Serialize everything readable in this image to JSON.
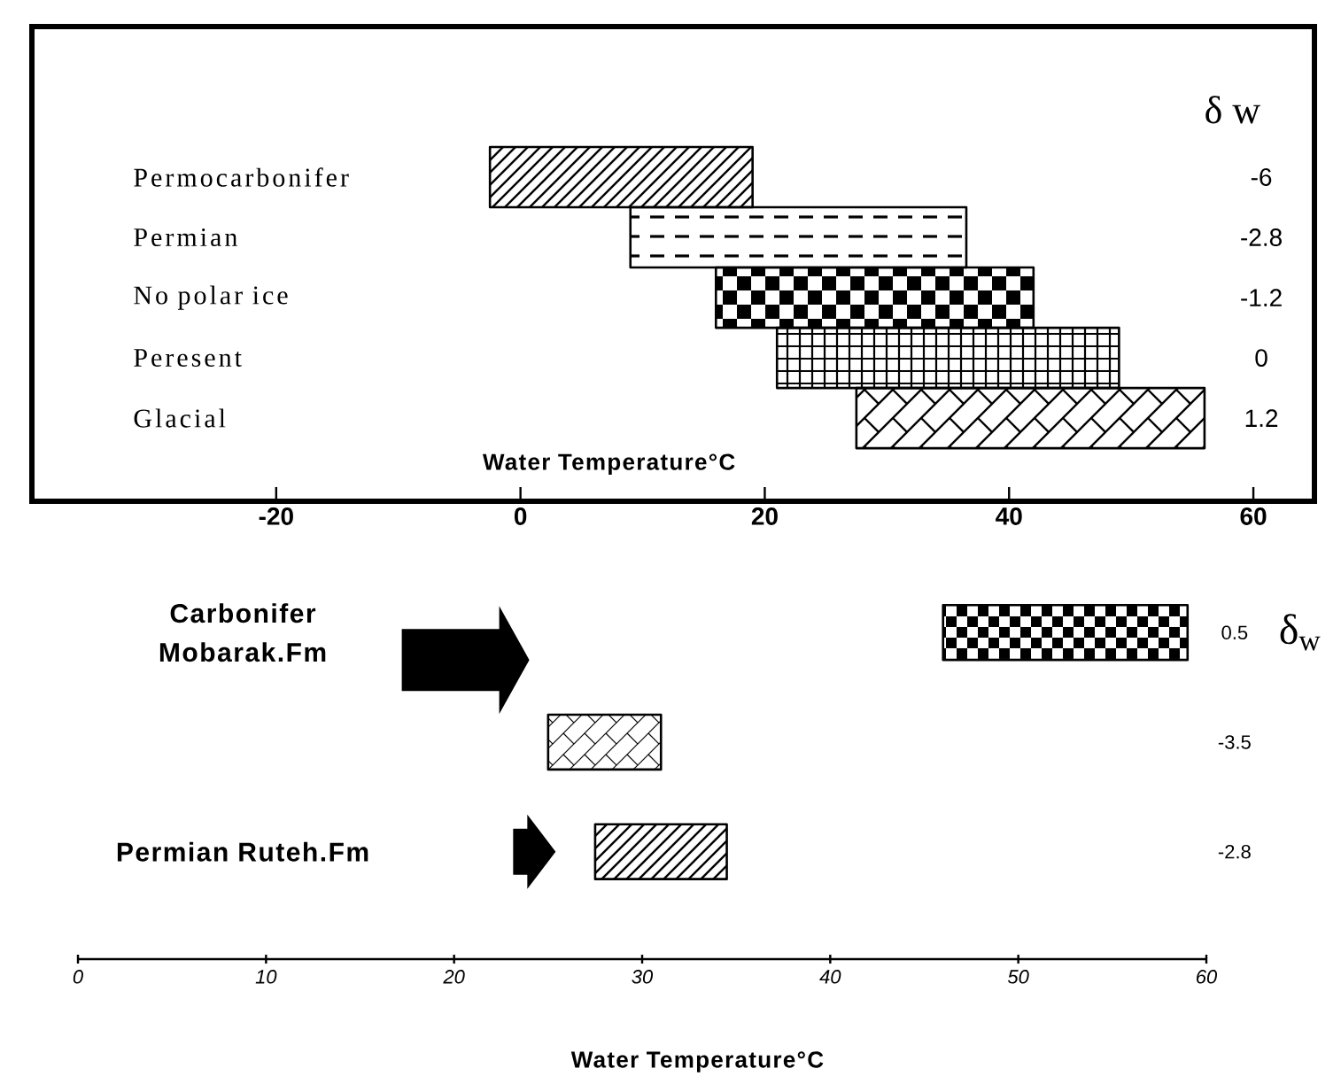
{
  "chart_data": [
    {
      "type": "bar",
      "orientation": "horizontal",
      "categories": [
        "Permocarbonifer",
        "Permian",
        "No polar ice",
        "Peresent",
        "Glacial"
      ],
      "base": [
        -2.5,
        9,
        16,
        21,
        27.5
      ],
      "values": [
        21.5,
        27.5,
        26,
        28,
        28.5
      ],
      "color": "#000000",
      "xlim": [
        -40,
        65
      ],
      "xticks": [
        -20,
        0,
        20,
        40,
        60
      ],
      "xlabel": "Water Temperature°C",
      "y2label": "δ w",
      "y2_categories": [
        "-6",
        "-2.8",
        "-1.2",
        "0",
        "1.2"
      ]
    },
    {
      "type": "bar",
      "orientation": "horizontal",
      "categories": [
        "Carbonifer Mobarak.Fm",
        null,
        "Permian Ruteh.Fm"
      ],
      "base": [
        46,
        25,
        27.5
      ],
      "values": [
        13,
        6,
        7
      ],
      "color": "#000000",
      "xlim": [
        0,
        60
      ],
      "xticks": [
        0,
        10,
        20,
        30,
        40,
        50,
        60
      ],
      "xlabel": "Water Temperature°C",
      "y2label": "δ$_{w}$",
      "y2_categories": [
        "0.5",
        "-3.5",
        "-2.8"
      ]
    }
  ]
}
